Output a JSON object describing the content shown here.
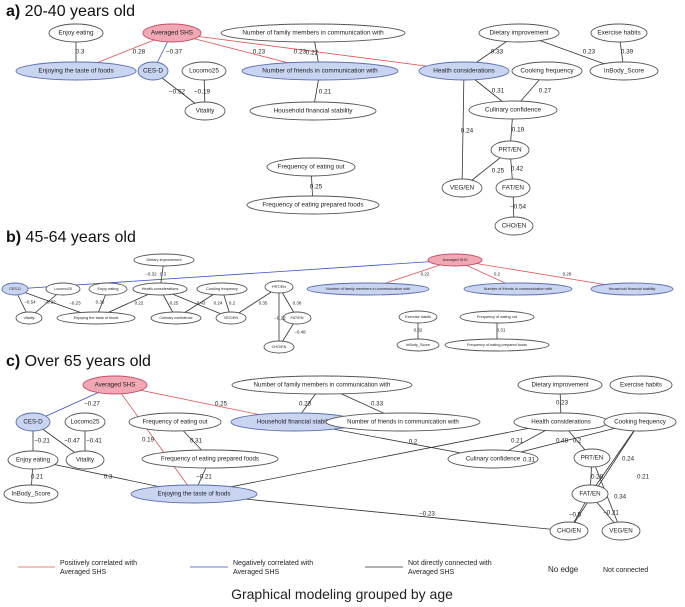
{
  "colors": {
    "positive": "#e05555",
    "negative": "#3a4fc8",
    "none": "#333333",
    "shs_fill": "#f2a8b4",
    "highlight_fill": "#c8d4f0"
  },
  "caption": "Graphical modeling grouped by age",
  "legend": {
    "positive": "Positively correlated with Averaged SHS",
    "negative": "Negatively correlated with Averaged SHS",
    "none": "Not directly connected with Averaged SHS",
    "no_edge": "No edge",
    "not_connected": "Not connected"
  },
  "panels": [
    {
      "tag": "a)",
      "title": "20-40 years old",
      "nodes": [
        {
          "id": "shs",
          "label": "Averaged SHS",
          "style": "shs"
        },
        {
          "id": "enjoy",
          "label": "Enjoy eating",
          "style": "plain"
        },
        {
          "id": "taste",
          "label": "Enjoying the taste of foods",
          "style": "hl"
        },
        {
          "id": "cesd",
          "label": "CES-D",
          "style": "hl"
        },
        {
          "id": "locomo",
          "label": "Locomo25",
          "style": "plain"
        },
        {
          "id": "vitality",
          "label": "Vitality",
          "style": "plain"
        },
        {
          "id": "nfam",
          "label": "Number of family members in communication with",
          "style": "plain"
        },
        {
          "id": "nfriend",
          "label": "Number of friends in communication with",
          "style": "hl"
        },
        {
          "id": "hfin",
          "label": "Household financial stability",
          "style": "plain"
        },
        {
          "id": "diet",
          "label": "Dietary improvement",
          "style": "plain"
        },
        {
          "id": "exer",
          "label": "Exercise habits",
          "style": "plain"
        },
        {
          "id": "health",
          "label": "Health considerations",
          "style": "hl"
        },
        {
          "id": "inbody",
          "label": "InBody_Score",
          "style": "plain"
        },
        {
          "id": "cookf",
          "label": "Cooking frequency",
          "style": "plain"
        },
        {
          "id": "culconf",
          "label": "Culinary confidence",
          "style": "plain"
        },
        {
          "id": "prt",
          "label": "PRT/EN",
          "style": "plain"
        },
        {
          "id": "veg",
          "label": "VEG/EN",
          "style": "plain"
        },
        {
          "id": "fat",
          "label": "FAT/EN",
          "style": "plain"
        },
        {
          "id": "cho",
          "label": "CHO/EN",
          "style": "plain"
        },
        {
          "id": "eatout",
          "label": "Frequency of eating out",
          "style": "plain"
        },
        {
          "id": "prep",
          "label": "Frequency of eating prepared foods",
          "style": "plain"
        }
      ],
      "edges": [
        {
          "from": "enjoy",
          "to": "taste",
          "weight": "0.3",
          "kind": "none"
        },
        {
          "from": "shs",
          "to": "taste",
          "weight": "0.28",
          "kind": "pos"
        },
        {
          "from": "shs",
          "to": "cesd",
          "weight": "−0.37",
          "kind": "neg"
        },
        {
          "from": "shs",
          "to": "nfriend",
          "weight": "0.23",
          "kind": "pos"
        },
        {
          "from": "shs",
          "to": "health",
          "weight": "0.23",
          "kind": "pos"
        },
        {
          "from": "nfam",
          "to": "nfriend",
          "weight": "0.22",
          "kind": "none"
        },
        {
          "from": "cesd",
          "to": "vitality",
          "weight": "−0.52",
          "kind": "none"
        },
        {
          "from": "locomo",
          "to": "vitality",
          "weight": "−0.19",
          "kind": "none"
        },
        {
          "from": "nfriend",
          "to": "hfin",
          "weight": "0.21",
          "kind": "none"
        },
        {
          "from": "diet",
          "to": "health",
          "weight": "0.33",
          "kind": "none"
        },
        {
          "from": "diet",
          "to": "inbody",
          "weight": "0.23",
          "kind": "none"
        },
        {
          "from": "exer",
          "to": "inbody",
          "weight": "0.39",
          "kind": "none"
        },
        {
          "from": "health",
          "to": "culconf",
          "weight": "0.31",
          "kind": "none"
        },
        {
          "from": "cookf",
          "to": "culconf",
          "weight": "0.27",
          "kind": "none"
        },
        {
          "from": "health",
          "to": "veg",
          "weight": "0.24",
          "kind": "none"
        },
        {
          "from": "culconf",
          "to": "prt",
          "weight": "0.19",
          "kind": "none"
        },
        {
          "from": "prt",
          "to": "veg",
          "weight": "0.25",
          "kind": "none"
        },
        {
          "from": "prt",
          "to": "fat",
          "weight": "0.42",
          "kind": "none"
        },
        {
          "from": "fat",
          "to": "cho",
          "weight": "−0.54",
          "kind": "none"
        },
        {
          "from": "eatout",
          "to": "prep",
          "weight": "0.25",
          "kind": "none"
        }
      ]
    },
    {
      "tag": "b)",
      "title": "45-64 years old",
      "nodes": [
        {
          "id": "diet",
          "label": "Dietary improvement",
          "style": "plain"
        },
        {
          "id": "shs",
          "label": "Averaged SHS",
          "style": "shs"
        },
        {
          "id": "cesd",
          "label": "CES-D",
          "style": "hl"
        },
        {
          "id": "locomo",
          "label": "Locomo25",
          "style": "plain"
        },
        {
          "id": "enjoy",
          "label": "Enjoy eating",
          "style": "plain"
        },
        {
          "id": "health",
          "label": "Health considerations",
          "style": "plain"
        },
        {
          "id": "cookf",
          "label": "Cooking frequency",
          "style": "plain"
        },
        {
          "id": "prt",
          "label": "PRT/EN",
          "style": "plain"
        },
        {
          "id": "vitality",
          "label": "Vitality",
          "style": "plain"
        },
        {
          "id": "taste",
          "label": "Enjoying the taste of foods",
          "style": "plain"
        },
        {
          "id": "culconf",
          "label": "Culinary confidence",
          "style": "plain"
        },
        {
          "id": "veg",
          "label": "VEG/EN",
          "style": "plain"
        },
        {
          "id": "fat",
          "label": "FAT/EN",
          "style": "plain"
        },
        {
          "id": "cho",
          "label": "CHO/EN",
          "style": "plain"
        },
        {
          "id": "nfam",
          "label": "Number of family members in communication with",
          "style": "hl"
        },
        {
          "id": "nfriend",
          "label": "Number of friends in communication with",
          "style": "hl"
        },
        {
          "id": "hfin",
          "label": "Household financial stability",
          "style": "hl"
        },
        {
          "id": "exer",
          "label": "Exercise habits",
          "style": "plain"
        },
        {
          "id": "inbody",
          "label": "InBody_Score",
          "style": "plain"
        },
        {
          "id": "eatout",
          "label": "Frequency of eating out",
          "style": "plain"
        },
        {
          "id": "prep",
          "label": "Frequency of eating prepared foods",
          "style": "plain"
        }
      ],
      "edges": [
        {
          "from": "shs",
          "to": "cesd",
          "weight": "−0.32",
          "kind": "neg"
        },
        {
          "from": "diet",
          "to": "health",
          "weight": "0.3",
          "kind": "none"
        },
        {
          "from": "shs",
          "to": "nfam",
          "weight": "0.22",
          "kind": "pos"
        },
        {
          "from": "shs",
          "to": "nfriend",
          "weight": "0.2",
          "kind": "pos"
        },
        {
          "from": "shs",
          "to": "hfin",
          "weight": "0.28",
          "kind": "pos"
        },
        {
          "from": "cesd",
          "to": "vitality",
          "weight": "−0.54",
          "kind": "none"
        },
        {
          "from": "locomo",
          "to": "vitality",
          "weight": "−0.32",
          "kind": "none"
        },
        {
          "from": "cesd",
          "to": "taste",
          "weight": "−0.23",
          "kind": "none"
        },
        {
          "from": "enjoy",
          "to": "taste",
          "weight": "0.36",
          "kind": "none"
        },
        {
          "from": "health",
          "to": "taste",
          "weight": "0.22",
          "kind": "none"
        },
        {
          "from": "health",
          "to": "culconf",
          "weight": "0.25",
          "kind": "none"
        },
        {
          "from": "cookf",
          "to": "culconf",
          "weight": "0.43",
          "kind": "none"
        },
        {
          "from": "health",
          "to": "veg",
          "weight": "0.24",
          "kind": "none"
        },
        {
          "from": "cookf",
          "to": "veg",
          "weight": "0.2",
          "kind": "none"
        },
        {
          "from": "prt",
          "to": "veg",
          "weight": "0.35",
          "kind": "none"
        },
        {
          "from": "prt",
          "to": "fat",
          "weight": "0.38",
          "kind": "none"
        },
        {
          "from": "prt",
          "to": "cho",
          "weight": "−0.22",
          "kind": "none"
        },
        {
          "from": "fat",
          "to": "cho",
          "weight": "−0.48",
          "kind": "none"
        },
        {
          "from": "exer",
          "to": "inbody",
          "weight": "0.32",
          "kind": "none"
        },
        {
          "from": "eatout",
          "to": "prep",
          "weight": "0.31",
          "kind": "none"
        }
      ]
    },
    {
      "tag": "c)",
      "title": "Over 65 years old",
      "nodes": [
        {
          "id": "shs",
          "label": "Averaged SHS",
          "style": "shs"
        },
        {
          "id": "nfam",
          "label": "Number of family members in communication with",
          "style": "plain"
        },
        {
          "id": "diet",
          "label": "Dietary improvement",
          "style": "plain"
        },
        {
          "id": "exer",
          "label": "Exercise habits",
          "style": "plain"
        },
        {
          "id": "cesd",
          "label": "CES-D",
          "style": "hl"
        },
        {
          "id": "hfin",
          "label": "Household financial stability",
          "style": "hl"
        },
        {
          "id": "nfriend",
          "label": "Number of friends in communication with",
          "style": "plain"
        },
        {
          "id": "health",
          "label": "Health considerations",
          "style": "plain"
        },
        {
          "id": "cookf",
          "label": "Cooking frequency",
          "style": "plain"
        },
        {
          "id": "locomo",
          "label": "Locomo25",
          "style": "plain"
        },
        {
          "id": "eatout",
          "label": "Frequency of eating out",
          "style": "plain"
        },
        {
          "id": "enjoy",
          "label": "Enjoy eating",
          "style": "plain"
        },
        {
          "id": "vitality",
          "label": "Vitality",
          "style": "plain"
        },
        {
          "id": "prep",
          "label": "Frequency of eating prepared foods",
          "style": "plain"
        },
        {
          "id": "culconf",
          "label": "Culinary confidence",
          "style": "plain"
        },
        {
          "id": "prt",
          "label": "PRT/EN",
          "style": "plain"
        },
        {
          "id": "inbody",
          "label": "InBody_Score",
          "style": "plain"
        },
        {
          "id": "taste",
          "label": "Enjoying the taste of foods",
          "style": "hl"
        },
        {
          "id": "fat",
          "label": "FAT/EN",
          "style": "plain"
        },
        {
          "id": "cho",
          "label": "CHO/EN",
          "style": "plain"
        },
        {
          "id": "veg",
          "label": "VEG/EN",
          "style": "plain"
        }
      ],
      "edges": [
        {
          "from": "shs",
          "to": "cesd",
          "weight": "−0.27",
          "kind": "neg"
        },
        {
          "from": "shs",
          "to": "hfin",
          "weight": "0.25",
          "kind": "pos"
        },
        {
          "from": "shs",
          "to": "taste",
          "weight": "0.19",
          "kind": "pos"
        },
        {
          "from": "nfam",
          "to": "hfin",
          "weight": "0.23",
          "kind": "none"
        },
        {
          "from": "nfam",
          "to": "nfriend",
          "weight": "0.33",
          "kind": "none"
        },
        {
          "from": "diet",
          "to": "health",
          "weight": "0.23",
          "kind": "none"
        },
        {
          "from": "cesd",
          "to": "enjoy",
          "weight": "−0.21",
          "kind": "none"
        },
        {
          "from": "cesd",
          "to": "vitality",
          "weight": "−0.47",
          "kind": "none"
        },
        {
          "from": "locomo",
          "to": "vitality",
          "weight": "−0.41",
          "kind": "none"
        },
        {
          "from": "eatout",
          "to": "prep",
          "weight": "0.31",
          "kind": "none"
        },
        {
          "from": "prep",
          "to": "taste",
          "weight": "−0.21",
          "kind": "none"
        },
        {
          "from": "enjoy",
          "to": "inbody",
          "weight": "0.21",
          "kind": "none"
        },
        {
          "from": "enjoy",
          "to": "taste",
          "weight": "0.3",
          "kind": "none"
        },
        {
          "from": "hfin",
          "to": "culconf",
          "weight": "0.2",
          "kind": "none"
        },
        {
          "from": "health",
          "to": "culconf",
          "weight": "0.21",
          "kind": "none"
        },
        {
          "from": "cookf",
          "to": "culconf",
          "weight": "0.48",
          "kind": "none"
        },
        {
          "from": "health",
          "to": "prt",
          "weight": "0.2",
          "kind": "none"
        },
        {
          "from": "health",
          "to": "taste",
          "weight": "0.31",
          "kind": "none"
        },
        {
          "from": "cookf",
          "to": "fat",
          "weight": "0.24",
          "kind": "none"
        },
        {
          "from": "cookf",
          "to": "cho",
          "weight": "0.21",
          "kind": "none"
        },
        {
          "from": "prt",
          "to": "fat",
          "weight": "0.28",
          "kind": "none"
        },
        {
          "from": "prt",
          "to": "veg",
          "weight": "0.34",
          "kind": "none"
        },
        {
          "from": "fat",
          "to": "cho",
          "weight": "−0.5",
          "kind": "none"
        },
        {
          "from": "fat",
          "to": "veg",
          "weight": "−0.21",
          "kind": "none"
        },
        {
          "from": "taste",
          "to": "cho",
          "weight": "−0.23",
          "kind": "none"
        }
      ]
    }
  ]
}
